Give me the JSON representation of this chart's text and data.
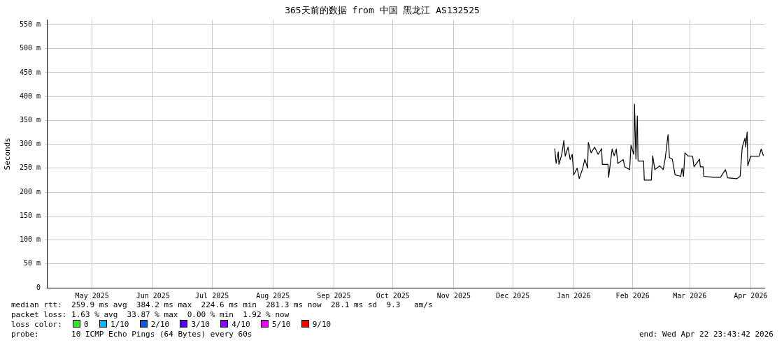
{
  "chart_data": {
    "type": "line",
    "title": "365天前的数据 from 中国 黑龙江 AS132525",
    "ylabel": "Seconds",
    "x": [
      "2026-01-06T08:00",
      "2026-01-07T01:00",
      "2026-01-08T03:00",
      "2026-01-08T11:00",
      "2026-01-09T22:00",
      "2026-01-10T23:00",
      "2026-01-11T16:00",
      "2026-01-13T02:00",
      "2026-01-14T04:00",
      "2026-01-15T06:00",
      "2026-01-15T23:00",
      "2026-01-17T18:00",
      "2026-01-18T19:00",
      "2026-01-20T14:00",
      "2026-01-21T15:00",
      "2026-01-23T01:00",
      "2026-01-23T10:00",
      "2026-01-24T20:00",
      "2026-01-26T15:00",
      "2026-01-28T10:00",
      "2026-01-30T04:00",
      "2026-01-30T13:00",
      "2026-02-02T09:00",
      "2026-02-02T18:00",
      "2026-02-04T12:00",
      "2026-02-05T14:00",
      "2026-02-06T16:00",
      "2026-02-07T09:00",
      "2026-02-10T05:00",
      "2026-02-10T22:00",
      "2026-02-13T10:00",
      "2026-02-14T03:00",
      "2026-02-15T13:00",
      "2026-02-15T22:00",
      "2026-02-16T15:00",
      "2026-02-17T08:00",
      "2026-02-17T17:00",
      "2026-02-20T13:00",
      "2026-02-20T21:00",
      "2026-02-24T11:00",
      "2026-02-25T04:00",
      "2026-02-26T06:00",
      "2026-02-28T17:00",
      "2026-03-02T12:00",
      "2026-03-03T14:00",
      "2026-03-04T23:00",
      "2026-03-05T17:00",
      "2026-03-07T03:00",
      "2026-03-08T13:00",
      "2026-03-11T10:00",
      "2026-03-12T03:00",
      "2026-03-12T20:00",
      "2026-03-13T13:00",
      "2026-03-14T23:00",
      "2026-03-17T11:00",
      "2026-03-18T04:00",
      "2026-03-21T00:00",
      "2026-03-21T09:00",
      "2026-03-22T19:00",
      "2026-03-23T03:00",
      "2026-03-28T03:00",
      "2026-03-31T16:00",
      "2026-04-03T04:00",
      "2026-04-04T06:00",
      "2026-04-08T21:00",
      "2026-04-10T15:00",
      "2026-04-11T17:00",
      "2026-04-13T03:00",
      "2026-04-13T12:00",
      "2026-04-14T05:00",
      "2026-04-14T13:00",
      "2026-04-15T23:00",
      "2026-04-18T20:00",
      "2026-04-20T08:00",
      "2026-04-21T08:00",
      "2026-04-22T12:00"
    ],
    "series": [
      {
        "color": "#000000",
        "values": [
          291,
          260,
          284,
          258,
          279,
          308,
          275,
          294,
          268,
          279,
          236,
          250,
          228,
          250,
          269,
          250,
          304,
          282,
          294,
          279,
          291,
          258,
          258,
          231,
          290,
          276,
          290,
          260,
          268,
          253,
          247,
          298,
          279,
          384,
          269,
          359,
          265,
          265,
          225,
          225,
          276,
          247,
          255,
          247,
          272,
          320,
          272,
          269,
          236,
          233,
          250,
          233,
          282,
          276,
          275,
          253,
          269,
          253,
          253,
          233,
          231,
          231,
          247,
          230,
          228,
          233,
          294,
          313,
          294,
          326,
          255,
          275,
          275,
          275,
          290,
          276
        ]
      }
    ],
    "xlim": [
      "2025-04-22T23:43",
      "2026-04-22T23:43"
    ],
    "xticks": [
      {
        "value": "2025-05-16",
        "label": "May 2025"
      },
      {
        "value": "2025-06-16",
        "label": "Jun 2025"
      },
      {
        "value": "2025-07-16",
        "label": "Jul 2025"
      },
      {
        "value": "2025-08-16",
        "label": "Aug 2025"
      },
      {
        "value": "2025-09-16",
        "label": "Sep 2025"
      },
      {
        "value": "2025-10-16",
        "label": "Oct 2025"
      },
      {
        "value": "2025-11-16",
        "label": "Nov 2025"
      },
      {
        "value": "2025-12-16",
        "label": "Dec 2025"
      },
      {
        "value": "2026-01-16",
        "label": "Jan 2026"
      },
      {
        "value": "2026-02-15",
        "label": "Feb 2026"
      },
      {
        "value": "2026-03-16",
        "label": "Mar 2026"
      },
      {
        "value": "2026-04-16",
        "label": "Apr 2026"
      }
    ],
    "ylim": [
      0,
      560
    ],
    "yticks": [
      0,
      {
        "value": 50,
        "label": "50 m"
      },
      {
        "value": 100,
        "label": "100 m"
      },
      {
        "value": 150,
        "label": "150 m"
      },
      {
        "value": 200,
        "label": "200 m"
      },
      {
        "value": 250,
        "label": "250 m"
      },
      {
        "value": 300,
        "label": "300 m"
      },
      {
        "value": 350,
        "label": "350 m"
      },
      {
        "value": 400,
        "label": "400 m"
      },
      {
        "value": 450,
        "label": "450 m"
      },
      {
        "value": 500,
        "label": "500 m"
      },
      {
        "value": 550,
        "label": "550 m"
      }
    ],
    "grid": true,
    "legend": false,
    "marker": "none",
    "line_style": "solid",
    "annotations": [
      "median rtt:  259.9 ms avg  384.2 ms max  224.6 ms min  281.3 ms now  28.1 ms sd  9.3   am/s",
      "packet loss: 1.63 % avg  33.87 % max  0.00 % min  1.92 % now",
      "loss color:",
      "0",
      "1/10",
      "2/10",
      "3/10",
      "4/10",
      "5/10",
      "9/10",
      "probe:       10 ICMP Echo Pings (64 Bytes) every 60s",
      "end: Wed Apr 22 23:43:42 2026"
    ]
  }
}
